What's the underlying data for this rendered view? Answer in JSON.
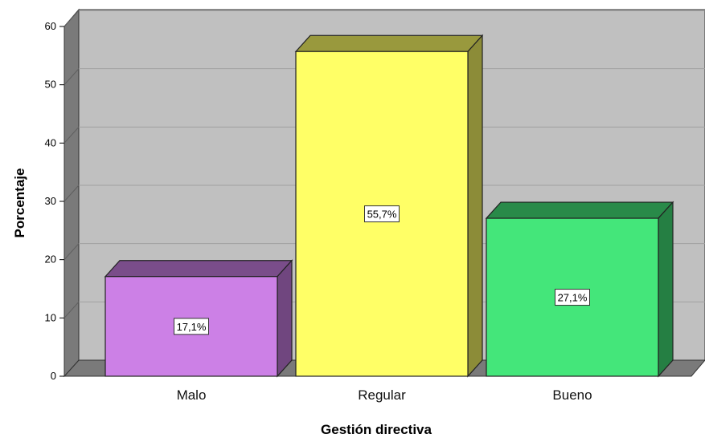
{
  "chart_data": {
    "type": "bar",
    "categories": [
      "Malo",
      "Regular",
      "Bueno"
    ],
    "values": [
      17.1,
      55.7,
      27.1
    ],
    "data_labels": [
      "17,1%",
      "55,7%",
      "27,1%"
    ],
    "colors": [
      "#cc80e6",
      "#ffff66",
      "#44e67a"
    ],
    "xlabel": "Gestión directiva",
    "ylabel": "Porcentaje",
    "ylim": [
      0,
      60
    ],
    "yticks": [
      "0",
      "10",
      "20",
      "30",
      "40",
      "50",
      "60"
    ],
    "grid": true,
    "style": "3d"
  }
}
